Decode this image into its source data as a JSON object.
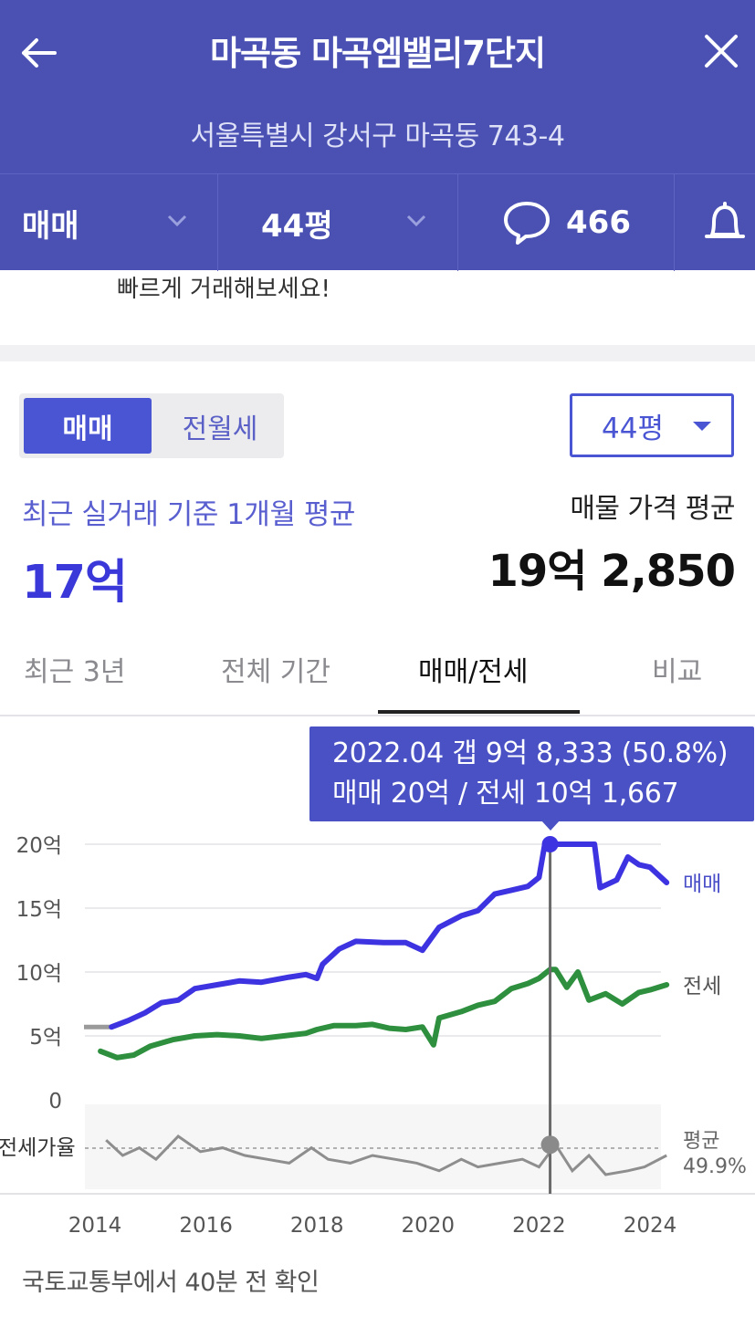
{
  "header": {
    "title": "마곡동 마곡엠밸리7단지",
    "address": "서울특별시 강서구 마곡동 743-4",
    "filters": {
      "deal_type": "매매",
      "size": "44평",
      "comment_count": "466"
    }
  },
  "notice": "빠르게 거래해보세요!",
  "controls": {
    "segment": {
      "active": "매매",
      "inactive": "전월세"
    },
    "size_select": "44평"
  },
  "summary": {
    "recent_label": "최근 실거래 기준 1개월 평균",
    "recent_value": "17억",
    "listing_label": "매물 가격 평균",
    "listing_value": "19억 2,850"
  },
  "tabs": [
    "최근 3년",
    "전체 기간",
    "매매/전세",
    "비교"
  ],
  "active_tab": "매매/전세",
  "tooltip": {
    "line1": "2022.04  갭 9억 8,333 (50.8%)",
    "line2": "매매 20억 / 전세 10억 1,667"
  },
  "chart_data": {
    "type": "line",
    "x_ticks": [
      "2014",
      "2016",
      "2018",
      "2020",
      "2022",
      "2024"
    ],
    "y_ticks": [
      "20억",
      "15억",
      "10억",
      "5억",
      "0"
    ],
    "ylim": [
      0,
      20
    ],
    "unit": "억",
    "grid": true,
    "series": [
      {
        "name": "매매",
        "color": "#3d33e0",
        "points": [
          [
            2014.3,
            5.7
          ],
          [
            2014.6,
            6.2
          ],
          [
            2014.9,
            6.8
          ],
          [
            2015.2,
            7.6
          ],
          [
            2015.5,
            7.8
          ],
          [
            2015.8,
            8.7
          ],
          [
            2016.2,
            9.0
          ],
          [
            2016.6,
            9.3
          ],
          [
            2017.0,
            9.2
          ],
          [
            2017.5,
            9.6
          ],
          [
            2017.8,
            9.8
          ],
          [
            2018.0,
            9.5
          ],
          [
            2018.1,
            10.6
          ],
          [
            2018.4,
            11.8
          ],
          [
            2018.7,
            12.4
          ],
          [
            2019.2,
            12.3
          ],
          [
            2019.6,
            12.3
          ],
          [
            2019.9,
            11.7
          ],
          [
            2020.2,
            13.5
          ],
          [
            2020.6,
            14.4
          ],
          [
            2020.9,
            14.8
          ],
          [
            2021.2,
            16.1
          ],
          [
            2021.5,
            16.4
          ],
          [
            2021.8,
            16.7
          ],
          [
            2022.0,
            17.4
          ],
          [
            2022.1,
            19.9
          ],
          [
            2022.3,
            20.0
          ],
          [
            2022.6,
            20.0
          ],
          [
            2023.0,
            20.0
          ],
          [
            2023.1,
            16.6
          ],
          [
            2023.4,
            17.2
          ],
          [
            2023.6,
            19.0
          ],
          [
            2023.8,
            18.4
          ],
          [
            2024.0,
            18.2
          ],
          [
            2024.3,
            17.0
          ]
        ]
      },
      {
        "name": "전세",
        "color": "#2e8f3e",
        "points": [
          [
            2014.1,
            3.8
          ],
          [
            2014.4,
            3.3
          ],
          [
            2014.7,
            3.5
          ],
          [
            2015.0,
            4.2
          ],
          [
            2015.4,
            4.7
          ],
          [
            2015.8,
            5.0
          ],
          [
            2016.2,
            5.1
          ],
          [
            2016.6,
            5.0
          ],
          [
            2017.0,
            4.8
          ],
          [
            2017.4,
            5.0
          ],
          [
            2017.8,
            5.2
          ],
          [
            2018.0,
            5.5
          ],
          [
            2018.3,
            5.8
          ],
          [
            2018.7,
            5.8
          ],
          [
            2019.0,
            5.9
          ],
          [
            2019.3,
            5.6
          ],
          [
            2019.6,
            5.5
          ],
          [
            2019.9,
            5.7
          ],
          [
            2020.1,
            4.3
          ],
          [
            2020.2,
            6.4
          ],
          [
            2020.6,
            6.9
          ],
          [
            2020.9,
            7.4
          ],
          [
            2021.2,
            7.7
          ],
          [
            2021.5,
            8.7
          ],
          [
            2021.8,
            9.1
          ],
          [
            2022.0,
            9.5
          ],
          [
            2022.2,
            10.2
          ],
          [
            2022.3,
            10.2
          ],
          [
            2022.5,
            8.8
          ],
          [
            2022.7,
            10.0
          ],
          [
            2022.9,
            7.8
          ],
          [
            2023.2,
            8.3
          ],
          [
            2023.5,
            7.5
          ],
          [
            2023.8,
            8.4
          ],
          [
            2024.0,
            8.6
          ],
          [
            2024.3,
            9.0
          ]
        ]
      }
    ],
    "ratio_series": {
      "name": "전세가율",
      "average_label": "평균",
      "average_value": "49.9%",
      "points": [
        [
          2014.2,
          52
        ],
        [
          2014.5,
          48
        ],
        [
          2014.8,
          50
        ],
        [
          2015.1,
          47
        ],
        [
          2015.5,
          53
        ],
        [
          2015.9,
          49
        ],
        [
          2016.3,
          50
        ],
        [
          2016.7,
          48
        ],
        [
          2017.1,
          47
        ],
        [
          2017.5,
          46
        ],
        [
          2017.9,
          50
        ],
        [
          2018.2,
          47
        ],
        [
          2018.6,
          46
        ],
        [
          2019.0,
          48
        ],
        [
          2019.4,
          47
        ],
        [
          2019.8,
          46
        ],
        [
          2020.2,
          44
        ],
        [
          2020.6,
          47
        ],
        [
          2020.9,
          45
        ],
        [
          2021.3,
          46
        ],
        [
          2021.7,
          47
        ],
        [
          2022.0,
          45
        ],
        [
          2022.3,
          50.8
        ],
        [
          2022.6,
          44
        ],
        [
          2022.9,
          48
        ],
        [
          2023.2,
          43
        ],
        [
          2023.6,
          44
        ],
        [
          2023.9,
          45
        ],
        [
          2024.3,
          48
        ]
      ]
    },
    "highlight": {
      "date": "2022.04",
      "sale": 20.0,
      "jeonse": 10.17,
      "ratio": 50.8
    }
  },
  "footer": "국토교통부에서 40분 전 확인"
}
